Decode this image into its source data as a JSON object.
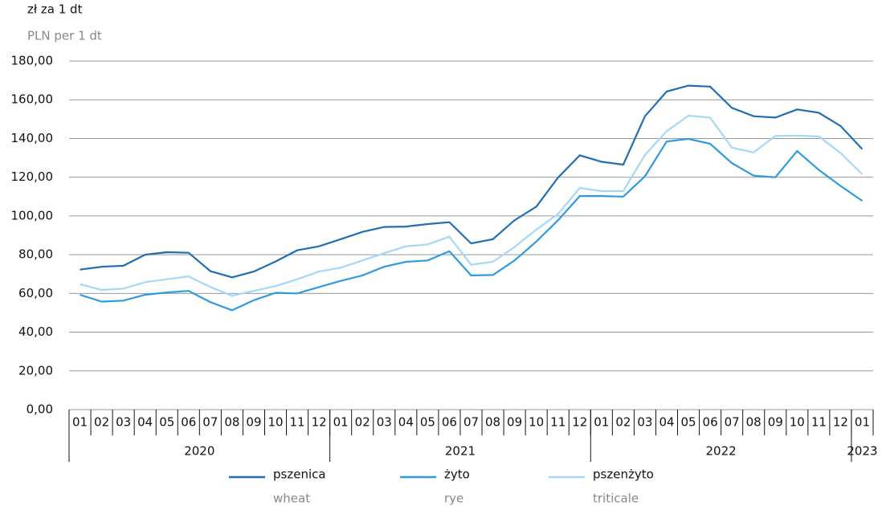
{
  "chart_data": {
    "type": "line",
    "y_label": "zł za 1 dt",
    "y_label_en": "PLN per 1 dt",
    "categories": [
      "01",
      "02",
      "03",
      "04",
      "05",
      "06",
      "07",
      "08",
      "09",
      "10",
      "11",
      "12",
      "01",
      "02",
      "03",
      "04",
      "05",
      "06",
      "07",
      "08",
      "09",
      "10",
      "11",
      "12",
      "01",
      "02",
      "03",
      "04",
      "05",
      "06",
      "07",
      "08",
      "09",
      "10",
      "11",
      "12",
      "01"
    ],
    "x_groups": [
      {
        "label": "2020",
        "count": 12
      },
      {
        "label": "2021",
        "count": 12
      },
      {
        "label": "2022",
        "count": 12
      },
      {
        "label": "2023",
        "count": 1
      }
    ],
    "series": [
      {
        "name": "pszenica",
        "name_en": "wheat",
        "color": "#1f6fb5",
        "values": [
          72.3,
          73.8,
          74.3,
          80,
          81.3,
          81,
          71.5,
          68.3,
          71.3,
          76.5,
          82.3,
          84.3,
          88,
          91.8,
          94.3,
          94.5,
          95.8,
          96.8,
          85.8,
          88,
          97.8,
          104.8,
          119.8,
          131.3,
          128,
          126.5,
          151.5,
          164.3,
          167.3,
          166.8,
          155.8,
          151.5,
          150.8,
          155,
          153.3,
          146.5,
          134.5
        ]
      },
      {
        "name": "żyto",
        "name_en": "rye",
        "color": "#2e9be0",
        "values": [
          59.3,
          55.8,
          56.3,
          59.3,
          60.5,
          61.3,
          55.5,
          51.3,
          56.5,
          60.3,
          60,
          63.3,
          66.5,
          69.3,
          73.8,
          76.3,
          77,
          81.8,
          69.3,
          69.5,
          77,
          86.8,
          97.8,
          110.3,
          110.3,
          110,
          120.5,
          138.5,
          139.8,
          137.3,
          127.3,
          120.8,
          120,
          133.5,
          123.8,
          115.5,
          107.8
        ]
      },
      {
        "name": "pszenżyto",
        "name_en": "triticale",
        "color": "#a6d8f5",
        "values": [
          64.8,
          61.8,
          62.5,
          65.8,
          67.3,
          68.8,
          63.3,
          58.8,
          61.3,
          63.8,
          67.3,
          71.3,
          73.3,
          77,
          80.8,
          84.3,
          85.3,
          89.3,
          74.8,
          76.3,
          84,
          93,
          101,
          114.5,
          112.8,
          112.8,
          131.5,
          143.8,
          151.8,
          150.8,
          135.3,
          132.8,
          141.3,
          141.5,
          141,
          132.5,
          121.5
        ]
      }
    ],
    "ylim": [
      0,
      180
    ],
    "yticks": [
      {
        "value": 0,
        "label": "0,00"
      },
      {
        "value": 20,
        "label": "20,00"
      },
      {
        "value": 40,
        "label": "40,00"
      },
      {
        "value": 60,
        "label": "60,00"
      },
      {
        "value": 80,
        "label": "80,00"
      },
      {
        "value": 100,
        "label": "100,00"
      },
      {
        "value": 120,
        "label": "120,00"
      },
      {
        "value": 140,
        "label": "140,00"
      },
      {
        "value": 160,
        "label": "160,00"
      },
      {
        "value": 180,
        "label": "180,00"
      }
    ],
    "grid": true
  }
}
